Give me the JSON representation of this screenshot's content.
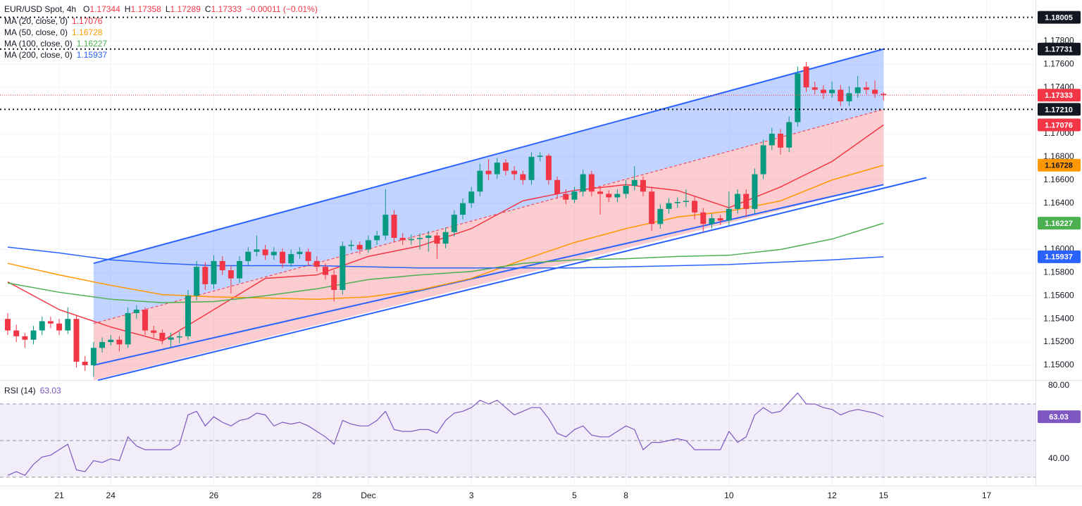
{
  "header": {
    "symbol": "EUR/USD Spot, 4h",
    "ohlc_labels": [
      "O",
      "H",
      "L",
      "C"
    ],
    "change": "−0.00011 (−0.01%)"
  },
  "chart_data": [
    {
      "type": "candlestick",
      "up_color": "#089981",
      "down_color": "#f23645",
      "xlim": [
        -0.9,
        119.7
      ],
      "xticks": [
        {
          "value": 6,
          "label": "21"
        },
        {
          "value": 12,
          "label": "24"
        },
        {
          "value": 24,
          "label": "26"
        },
        {
          "value": 36,
          "label": "28"
        },
        {
          "value": 42,
          "label": "Dec"
        },
        {
          "value": 54,
          "label": "3"
        },
        {
          "value": 66,
          "label": "5"
        },
        {
          "value": 72,
          "label": "8"
        },
        {
          "value": 84,
          "label": "10"
        },
        {
          "value": 96,
          "label": "12"
        },
        {
          "value": 102,
          "label": "15"
        },
        {
          "value": 114,
          "label": "17"
        }
      ],
      "ylim": [
        1.14872,
        1.18155
      ],
      "yticks": [
        {
          "value": 1.178,
          "label": "1.17800"
        },
        {
          "value": 1.176,
          "label": "1.17600"
        },
        {
          "value": 1.174,
          "label": "1.17400"
        },
        {
          "value": 1.17,
          "label": "1.17000"
        },
        {
          "value": 1.168,
          "label": "1.16800"
        },
        {
          "value": 1.166,
          "label": "1.16600"
        },
        {
          "value": 1.164,
          "label": "1.16400"
        },
        {
          "value": 1.16,
          "label": "1.16000"
        },
        {
          "value": 1.158,
          "label": "1.15800"
        },
        {
          "value": 1.156,
          "label": "1.15600"
        },
        {
          "value": 1.154,
          "label": "1.15400"
        },
        {
          "value": 1.152,
          "label": "1.15200"
        },
        {
          "value": 1.15,
          "label": "1.15000"
        }
      ],
      "candles": [
        [
          1.154,
          1.1545,
          1.1526,
          1.153
        ],
        [
          1.153,
          1.1535,
          1.152,
          1.1525
        ],
        [
          1.1525,
          1.1528,
          1.1515,
          1.1522
        ],
        [
          1.1522,
          1.1534,
          1.1518,
          1.153
        ],
        [
          1.153,
          1.1542,
          1.1526,
          1.1538
        ],
        [
          1.1538,
          1.1542,
          1.1532,
          1.1536
        ],
        [
          1.1536,
          1.154,
          1.1526,
          1.153
        ],
        [
          1.153,
          1.155,
          1.1527,
          1.154
        ],
        [
          1.154,
          1.1543,
          1.1498,
          1.1503
        ],
        [
          1.1503,
          1.1508,
          1.1495,
          1.15
        ],
        [
          1.15,
          1.152,
          1.149,
          1.1515
        ],
        [
          1.1515,
          1.1524,
          1.1511,
          1.152
        ],
        [
          1.152,
          1.1526,
          1.1517,
          1.1522
        ],
        [
          1.1522,
          1.1525,
          1.1512,
          1.1518
        ],
        [
          1.1518,
          1.155,
          1.1515,
          1.1545
        ],
        [
          1.1545,
          1.1552,
          1.154,
          1.1548
        ],
        [
          1.1548,
          1.155,
          1.1526,
          1.153
        ],
        [
          1.153,
          1.1534,
          1.1524,
          1.1528
        ],
        [
          1.1528,
          1.1531,
          1.1518,
          1.1522
        ],
        [
          1.1522,
          1.1528,
          1.1515,
          1.1524
        ],
        [
          1.1524,
          1.1529,
          1.1519,
          1.1525
        ],
        [
          1.1525,
          1.1565,
          1.1522,
          1.156
        ],
        [
          1.156,
          1.159,
          1.1556,
          1.1585
        ],
        [
          1.1585,
          1.1589,
          1.1565,
          1.157
        ],
        [
          1.157,
          1.1595,
          1.1566,
          1.159
        ],
        [
          1.159,
          1.1594,
          1.1578,
          1.1582
        ],
        [
          1.1582,
          1.1586,
          1.1562,
          1.1575
        ],
        [
          1.1575,
          1.1594,
          1.1571,
          1.159
        ],
        [
          1.159,
          1.1602,
          1.1586,
          1.1598
        ],
        [
          1.1598,
          1.1612,
          1.1594,
          1.16
        ],
        [
          1.16,
          1.1604,
          1.1591,
          1.1595
        ],
        [
          1.1595,
          1.1602,
          1.1591,
          1.1598
        ],
        [
          1.1598,
          1.1601,
          1.1584,
          1.1588
        ],
        [
          1.1588,
          1.16,
          1.1585,
          1.1596
        ],
        [
          1.1596,
          1.1602,
          1.1592,
          1.1598
        ],
        [
          1.1598,
          1.1601,
          1.1586,
          1.159
        ],
        [
          1.159,
          1.1594,
          1.1581,
          1.1585
        ],
        [
          1.1585,
          1.1588,
          1.1574,
          1.1578
        ],
        [
          1.1578,
          1.1582,
          1.1555,
          1.1565
        ],
        [
          1.1565,
          1.1607,
          1.1561,
          1.1603
        ],
        [
          1.1603,
          1.1608,
          1.1599,
          1.1604
        ],
        [
          1.1604,
          1.1607,
          1.1596,
          1.16
        ],
        [
          1.16,
          1.1612,
          1.1597,
          1.1608
        ],
        [
          1.1608,
          1.1616,
          1.1604,
          1.1612
        ],
        [
          1.1612,
          1.1652,
          1.1608,
          1.163
        ],
        [
          1.163,
          1.1634,
          1.1606,
          1.161
        ],
        [
          1.161,
          1.1614,
          1.1604,
          1.1608
        ],
        [
          1.1608,
          1.1613,
          1.1604,
          1.1609
        ],
        [
          1.1609,
          1.1614,
          1.16,
          1.161
        ],
        [
          1.161,
          1.1616,
          1.1598,
          1.1612
        ],
        [
          1.1612,
          1.1615,
          1.1592,
          1.1605
        ],
        [
          1.1605,
          1.1619,
          1.1601,
          1.1615
        ],
        [
          1.1615,
          1.1634,
          1.1611,
          1.163
        ],
        [
          1.163,
          1.1644,
          1.1626,
          1.164
        ],
        [
          1.164,
          1.1654,
          1.1636,
          1.165
        ],
        [
          1.165,
          1.1674,
          1.1646,
          1.1668
        ],
        [
          1.1668,
          1.1678,
          1.166,
          1.1665
        ],
        [
          1.1665,
          1.1679,
          1.1661,
          1.1675
        ],
        [
          1.1675,
          1.1678,
          1.1664,
          1.1668
        ],
        [
          1.1668,
          1.1672,
          1.166,
          1.1665
        ],
        [
          1.1665,
          1.1668,
          1.1656,
          1.166
        ],
        [
          1.166,
          1.1684,
          1.1656,
          1.168
        ],
        [
          1.168,
          1.1684,
          1.1676,
          1.1681
        ],
        [
          1.1681,
          1.1683,
          1.1656,
          1.166
        ],
        [
          1.166,
          1.1663,
          1.1644,
          1.1648
        ],
        [
          1.1648,
          1.1652,
          1.1639,
          1.1643
        ],
        [
          1.1643,
          1.1654,
          1.164,
          1.165
        ],
        [
          1.165,
          1.1669,
          1.1646,
          1.1665
        ],
        [
          1.1665,
          1.1668,
          1.1646,
          1.165
        ],
        [
          1.165,
          1.1654,
          1.163,
          1.1648
        ],
        [
          1.1648,
          1.1651,
          1.1641,
          1.1645
        ],
        [
          1.1645,
          1.1652,
          1.1641,
          1.1648
        ],
        [
          1.1648,
          1.166,
          1.1644,
          1.1655
        ],
        [
          1.1655,
          1.1672,
          1.1651,
          1.166
        ],
        [
          1.166,
          1.1663,
          1.1646,
          1.165
        ],
        [
          1.165,
          1.1654,
          1.1616,
          1.1622
        ],
        [
          1.1622,
          1.1639,
          1.1618,
          1.1635
        ],
        [
          1.1635,
          1.1644,
          1.1631,
          1.164
        ],
        [
          1.164,
          1.1645,
          1.1636,
          1.1641
        ],
        [
          1.1641,
          1.1652,
          1.1637,
          1.1642
        ],
        [
          1.1642,
          1.1646,
          1.1626,
          1.1632
        ],
        [
          1.1632,
          1.1636,
          1.1615,
          1.1622
        ],
        [
          1.1622,
          1.1631,
          1.1618,
          1.1627
        ],
        [
          1.1627,
          1.163,
          1.1621,
          1.1625
        ],
        [
          1.1625,
          1.165,
          1.1621,
          1.1635
        ],
        [
          1.1635,
          1.1652,
          1.1631,
          1.1648
        ],
        [
          1.1648,
          1.1652,
          1.1628,
          1.1635
        ],
        [
          1.1635,
          1.167,
          1.1631,
          1.1665
        ],
        [
          1.1665,
          1.1695,
          1.1661,
          1.169
        ],
        [
          1.169,
          1.1705,
          1.1686,
          1.17
        ],
        [
          1.17,
          1.1704,
          1.1682,
          1.1688
        ],
        [
          1.1688,
          1.1715,
          1.1684,
          1.171
        ],
        [
          1.171,
          1.1758,
          1.1706,
          1.1752
        ],
        [
          1.1758,
          1.1762,
          1.1736,
          1.174
        ],
        [
          1.174,
          1.1745,
          1.1734,
          1.1738
        ],
        [
          1.1738,
          1.1742,
          1.173,
          1.1735
        ],
        [
          1.1735,
          1.1745,
          1.1731,
          1.1738
        ],
        [
          1.1738,
          1.1742,
          1.1724,
          1.1728
        ],
        [
          1.1728,
          1.1741,
          1.1724,
          1.1735
        ],
        [
          1.1735,
          1.175,
          1.1731,
          1.174
        ],
        [
          1.174,
          1.1745,
          1.1734,
          1.1738
        ],
        [
          1.1738,
          1.1746,
          1.1731,
          1.17344
        ],
        [
          1.17344,
          1.17358,
          1.17289,
          1.17333
        ]
      ],
      "series": [
        {
          "name": "MA (20, close, 0)",
          "color": "#f23645",
          "x": [
            0,
            6,
            12,
            18,
            24,
            30,
            36,
            42,
            48,
            54,
            60,
            66,
            72,
            78,
            84,
            90,
            96,
            102
          ],
          "values": [
            1.1572,
            1.1548,
            1.1533,
            1.1521,
            1.1548,
            1.1575,
            1.1578,
            1.1594,
            1.1603,
            1.1618,
            1.1642,
            1.1651,
            1.1656,
            1.1651,
            1.1636,
            1.1654,
            1.1676,
            1.17076
          ]
        },
        {
          "name": "MA (50, close, 0)",
          "color": "#ff9800",
          "x": [
            0,
            6,
            12,
            18,
            24,
            30,
            36,
            42,
            48,
            54,
            60,
            66,
            72,
            78,
            84,
            90,
            96,
            102
          ],
          "values": [
            1.1588,
            1.1578,
            1.1569,
            1.1561,
            1.1559,
            1.1558,
            1.1557,
            1.1559,
            1.1565,
            1.1575,
            1.1591,
            1.1606,
            1.1618,
            1.1628,
            1.1633,
            1.1642,
            1.166,
            1.16728
          ]
        },
        {
          "name": "MA (100, close, 0)",
          "color": "#4caf50",
          "x": [
            0,
            6,
            12,
            18,
            24,
            30,
            36,
            42,
            48,
            54,
            60,
            66,
            72,
            78,
            84,
            90,
            96,
            102
          ],
          "values": [
            1.1571,
            1.1563,
            1.1557,
            1.1554,
            1.1555,
            1.156,
            1.1566,
            1.1574,
            1.1578,
            1.1581,
            1.1588,
            1.1591,
            1.1592,
            1.1594,
            1.1595,
            1.16,
            1.1609,
            1.16227
          ]
        },
        {
          "name": "MA (200, close, 0)",
          "color": "#2962ff",
          "x": [
            0,
            6,
            12,
            18,
            24,
            30,
            36,
            42,
            48,
            54,
            60,
            66,
            72,
            78,
            84,
            90,
            96,
            102
          ],
          "values": [
            1.1602,
            1.1597,
            1.1591,
            1.1588,
            1.1586,
            1.1586,
            1.1586,
            1.1585,
            1.1584,
            1.1584,
            1.1584,
            1.1584,
            1.1585,
            1.1586,
            1.1587,
            1.1589,
            1.1591,
            1.15937
          ]
        }
      ],
      "channel": {
        "x": [
          10,
          102
        ],
        "upper": [
          1.1588,
          1.17731
        ],
        "middle": [
          1.1536,
          1.1721
        ],
        "lower": [
          1.1487,
          1.1656
        ]
      },
      "trendlines": [
        {
          "x": [
            10,
            102
          ],
          "y": [
            1.15,
            1.1656
          ]
        },
        {
          "x": [
            10.5,
            107
          ],
          "y": [
            1.1487,
            1.1662
          ]
        }
      ],
      "levels": [
        {
          "value": 1.18005
        },
        {
          "value": 1.17731
        },
        {
          "value": 1.1721,
          "label": "1.17210"
        }
      ]
    },
    {
      "type": "line",
      "title": "RSI (14)",
      "color": "#7e57c2",
      "ylim": [
        25.38,
        83.08
      ],
      "yticks": [
        {
          "value": 80,
          "label": "80.00"
        },
        {
          "value": 40,
          "label": "40.00"
        }
      ],
      "levels": [
        70,
        50,
        30
      ],
      "values": [
        31,
        33,
        31,
        37,
        41,
        42,
        45,
        48,
        34,
        33,
        39,
        38,
        40,
        39,
        52,
        47,
        45,
        45,
        45,
        45,
        48,
        64,
        66,
        58,
        63,
        60,
        58,
        61,
        62,
        65,
        64,
        58,
        60,
        59,
        60,
        58,
        55,
        52,
        48,
        61,
        59,
        58,
        58,
        61,
        66,
        56,
        55,
        55,
        56,
        56,
        54,
        61,
        65,
        66,
        68,
        72,
        70,
        72,
        68,
        64,
        66,
        68,
        68,
        62,
        54,
        52,
        56,
        58,
        53,
        52,
        52,
        55,
        58,
        56,
        45,
        49,
        49,
        50,
        51,
        50,
        45,
        45,
        45,
        45,
        55,
        49,
        52,
        64,
        68,
        65,
        66,
        71,
        76,
        70,
        70,
        68,
        67,
        64,
        66,
        67,
        66,
        65,
        63.03
      ]
    }
  ]
}
